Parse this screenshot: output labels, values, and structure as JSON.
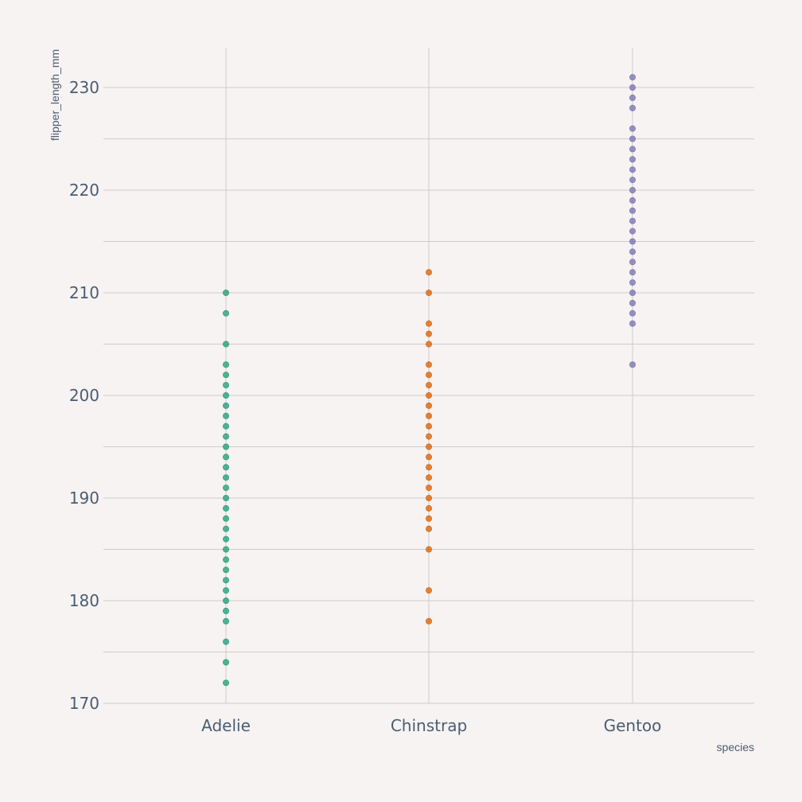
{
  "chart_data": {
    "type": "scatter",
    "title": "",
    "xlabel": "species",
    "ylabel": "flipper_length_mm",
    "categories": [
      "Adelie",
      "Chinstrap",
      "Gentoo"
    ],
    "ylim": [
      169,
      234
    ],
    "yticks": [
      170,
      180,
      190,
      200,
      210,
      220,
      230
    ],
    "grid": true,
    "series": [
      {
        "category": "Adelie",
        "color": "#1b9e77",
        "values": [
          172,
          174,
          176,
          178,
          179,
          180,
          181,
          182,
          183,
          184,
          185,
          186,
          187,
          188,
          189,
          190,
          191,
          192,
          193,
          194,
          195,
          196,
          197,
          198,
          199,
          200,
          201,
          202,
          203,
          205,
          208,
          210
        ]
      },
      {
        "category": "Chinstrap",
        "color": "#d95f02",
        "values": [
          178,
          181,
          185,
          187,
          188,
          189,
          190,
          191,
          192,
          193,
          194,
          195,
          196,
          197,
          198,
          199,
          200,
          201,
          202,
          203,
          205,
          206,
          207,
          210,
          212
        ]
      },
      {
        "category": "Gentoo",
        "color": "#7570b3",
        "values": [
          203,
          207,
          208,
          209,
          210,
          211,
          212,
          213,
          214,
          215,
          216,
          217,
          218,
          219,
          220,
          221,
          222,
          223,
          224,
          225,
          226,
          228,
          229,
          230,
          231
        ]
      }
    ]
  }
}
